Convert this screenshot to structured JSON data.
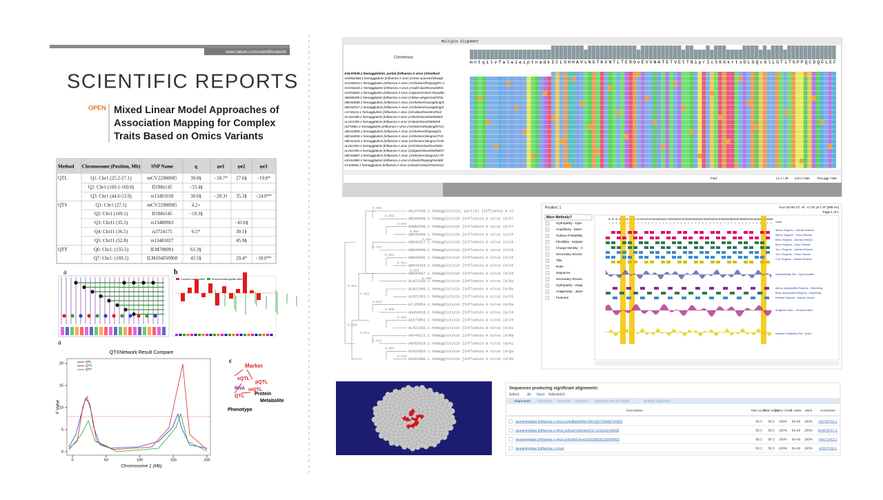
{
  "article": {
    "url": "www.nature.com/scientificreports",
    "journal": "SCIENTIFIC REPORTS",
    "open": "OPEN",
    "title_lines": [
      "Mixed Linear Model Approaches of",
      "Association Mapping for Complex",
      "Traits Based on Omics Variants"
    ]
  },
  "table": {
    "header": [
      "Method",
      "Chromosome (Position, Mb)",
      "SNP Name",
      "q",
      "φe1",
      "φe2",
      "φe3"
    ],
    "rows": [
      {
        "method": "QTL",
        "locus": "Q1: Chr1 (25.2-27.1)",
        "snp": "mCV22980985",
        "q": "30.8§",
        "e1": "−18.7*",
        "e2": "27.6§",
        "e3": "−19.8*"
      },
      {
        "locus": "Q2: Chr1 (169.1-169.8)",
        "snp": "D1Mit145",
        "q": "−33.4§"
      },
      {
        "locus": "Q3: Chr1 (44.6-53.9)",
        "snp": "rs13481018",
        "q": "30.6§",
        "e1": "−28.3†",
        "e2": "35.3§",
        "e3": "−24.0**"
      },
      {
        "method": "QTS",
        "locus": "Q1: Chr1 (27.1)",
        "snp": "mCV22980985",
        "q": "4.2+"
      },
      {
        "locus": "Q2: Chr1 (169.1)",
        "snp": "D1Mit145",
        "q": "−19.3§"
      },
      {
        "locus": "Q3: Chr11 (35.3)",
        "snp": "rs13480963",
        "e2": "−41.6§"
      },
      {
        "locus": "Q4: Chr11 (36.5)",
        "snp": "rs3724175",
        "q": "6.5*",
        "e2": "30.1§"
      },
      {
        "locus": "Q5: Chr11 (52.8)",
        "snp": "rs13481027",
        "e2": "45.9§"
      },
      {
        "method": "QTT",
        "locus": "Q6: Chr1: (155.5)",
        "snp": "ILM780091",
        "q": "61.3§"
      },
      {
        "locus": "Q7: Chr1: (169.1)",
        "snp": "ILM104050068",
        "q": "45.5§",
        "e2": "29.4*",
        "e3": "−18.0**"
      }
    ]
  },
  "figure_labels": [
    "a",
    "b",
    "a",
    "c"
  ],
  "fig_b_legend": [
    "Common loaded effect",
    "Environmental specific effect"
  ],
  "network_chart": {
    "title": "QTXNetwork Result Compare",
    "legend": [
      "QTL",
      "QTS",
      "QTT"
    ],
    "y_label": "F Value",
    "x_label": "Chromosome  1 (Mb)",
    "xticks": [
      0,
      50,
      100,
      150,
      200
    ],
    "yticks": [
      0,
      5,
      10,
      15,
      20
    ]
  },
  "omics": {
    "labels": [
      "Marker",
      "eQTL",
      "pQTL",
      "mQTL",
      "RNA",
      "Protein",
      "Metabolite",
      "QTL",
      "Phenotype"
    ]
  },
  "alignment": {
    "title": "Multiple alignment",
    "consensus_label": "Consensus",
    "consensus": "mntqilvfalaiaiptnadkICLGHHAVsNGTKVNTLTERGvEVVNATETVEtTNiprIcSKGkrtvDLGQcGlLGTiTGPPQCDQFLEF",
    "rows": [
      "AGL97639.1 hemagglutinin, partial [Influenza A virus (A/mallard",
      "AGW82588.1 hemagglutinin [Influenza A virus (A/tree sparrow/Shangh",
      "AHA56910.1 hemagglutinin [Influenza A virus (A/chicken/Zhejiang/PA-C",
      "AGO53410.1 hemagglutinin [Influenza A virus (A/wild duck/Korea/MHC",
      "ACK53683.1 hemagglutinin [Influenza A virus (A/goose/Czech Republic",
      "ABS89409.1 hemagglutinin [Influenza A virus (A/blue-winged teal/Ohio,",
      "ABO44098.1 hemagglutinin [Influenza A virus (A/chicken/Guangdong/G",
      "ABO42917.1 hemagglutinin [Influenza A virus (A/chicken/Guangdong/Z",
      "AAY46211.1 hemagglutinin [Influenza A virus (A/mallard/Sweden/91/2",
      "ALH21359.1 hemagglutinin [Influenza A virus (A/duck/Wuxi/0405006/2",
      "ALH21356.1 hemagglutinin [Influenza A virus (A/duck/Wuxi/0405005",
      "AIZ72861.1 hemagglutinin [Influenza A virus (A/chicken/Zhejiang/DT1C",
      "ABO44099.1 hemagglutinin [Influenza A virus (A/chicken/Zhejiang/Z1",
      "ABO44092.1 hemagglutinin [Influenza A virus (A/chicken/Jiangsu/JT15",
      "ABO44104.1 hemagglutinin [Influenza A virus (A/chicken/Jiangsu/TZ45",
      "ALH21353.1 hemagglutinin [Influenza A virus (A/chicken/Suzhou/0402",
      "ALH21355.1 hemagglutinin [Influenza A virus (A/pigeon/Wuxi/0405007/",
      "ABO44087.1 hemagglutinin [Influenza A virus (A/chicken/Jiangsu/LY79",
      "ASV61988.1 hemagglutinin [Influenza A virus (A/duck/Zhejiang/S4489/",
      "ATJ25954.1 hemagglutinin [Influenza A virus (A/duck/Anhui/S702/2013"
    ],
    "status": [
      "Find:",
      "Ln 1 / 20",
      "Col 1 / 564",
      "Pos pgp / 530"
    ]
  },
  "tree": {
    "leaves": [
      "AGL97639.1 hemagglutinin, partial [Influenza A vi",
      "ABS89409.1 hemagglutinin [Influenza A virus (A/bl",
      "AGW82588.1 hemagglutinin [Influenza A virus (A/tr",
      "ABO44098.1 hemagglutinin [Influenza A virus (A/ch",
      "ABO42917.1 hemagglutinin [Influenza A virus (A/ch",
      "ABO44099.1 hemagglutinin [Influenza A virus (A/ch",
      "ABO44092.1 hemagglutinin [Influenza A virus (A/ch",
      "ABO44104.1 hemagglutinin [Influenza A virus (A/ch",
      "ABO44087.1 hemagglutinin [Influenza A virus (A/ch",
      "ALH21359.1 hemagglutinin [Influenza A virus (A/du",
      "ALH21356.1 hemagglutinin [Influenza A virus (A/du",
      "ALH21353.1 hemagglutinin [Influenza A virus (A/ch",
      "ATJ25954.1 hemagglutinin [Influenza A virus (A/du",
      "AHA56910.1 hemagglutinin [Influenza A virus (A/ch",
      "AIZ72861.1 hemagglutinin [Influenza A virus (A/ch",
      "ALH21355.1 hemagglutinin [Influenza A virus (A/pi",
      "AAY46211.1 hemagglutinin [Influenza A virus (A/ma",
      "AGO53410.1 hemagglutinin [Influenza A virus (A/wi",
      "ACK53683.1 hemagglutinin [Influenza A virus (A/go",
      "ASV61988.1 hemagglutinin [Influenza A virus (A/du"
    ],
    "branch_values": [
      "0.004",
      "0.003",
      "0.004",
      "0.002",
      "0.004",
      "0.001",
      "0.003",
      "0.011",
      "0.005",
      "0.003",
      "0.001",
      "0.002",
      "0.013",
      "0.006",
      "0.004",
      "0.008",
      "0.013",
      "0.014",
      "0.003",
      "0.016"
    ]
  },
  "protein": {
    "position": "Position: 1",
    "stats": "m.w. 51761.27, ch. +1.79, pI 7.37 [465 AA]",
    "page": "Page 1 of 1",
    "dropdown": "More Methods?",
    "methods": [
      "Hydropathy - Kyte-",
      "Amphilicity - Eisen",
      "Surface Probability",
      "Flexibility - Karplus",
      "Charge Density - C",
      "Secondary Structu",
      "Title",
      "Ruler",
      "Sequence",
      "Secondary Structu",
      "Hydropathy - Hopp",
      "Antigenicity - Jame",
      "Features"
    ],
    "scale": [
      10,
      20,
      30,
      40,
      50,
      60,
      70,
      80,
      90,
      100,
      110,
      120,
      130,
      140,
      150,
      160,
      170,
      180,
      190,
      200,
      210,
      220,
      230,
      240,
      250,
      260,
      270,
      280,
      290,
      300,
      310,
      320,
      330,
      340,
      350,
      360,
      370,
      380,
      390,
      400,
      410,
      420,
      430,
      440,
      450,
      460
    ],
    "legend": [
      "Scale",
      "Alpha, Regions - Garnier-Robson",
      "Alpha, Regions - Chou-Fasman",
      "Beta, Regions - Garnier-Robson",
      "Beta, Regions - Chou-Fasman",
      "Turn, Regions - Garnier-Robson",
      "Turn, Regions - Chou-Fasman",
      "Coil, Regions - Garnier-Robson",
      "Hydrophilicity Plot - Kyte-Doolittle",
      "Alpha, Amphipathic Regions - Eisenberg",
      "Beta, Amphipathic Regions - Eisenberg",
      "Flexible Regions - Karplus-Schulz",
      "Antigenic Index - Jameson-Wolf",
      "Surface Probability Plot - Emini"
    ]
  },
  "blast": {
    "heading": "Sequences producing significant alignments:",
    "select": [
      "Select:",
      "All",
      "None",
      "Selected:0"
    ],
    "tabs": [
      "Alignments",
      "Download",
      "GenPept",
      "Graphics",
      "Distance tree of results",
      "Multiple alignment"
    ],
    "columns": [
      "Description",
      "Max score",
      "Total score",
      "Query cover",
      "E value",
      "Ident",
      "Accession"
    ],
    "rows": [
      [
        "neuraminidase [Influenza A virus (A/mallard/MN/AI08-3267/2008(H1N9))]",
        "58.3",
        "58.3",
        "100%",
        "6e-09",
        "100%",
        "AGT18710.1"
      ],
      [
        "neuraminidase [Influenza A virus (A/duck/Vietnam/G17-1/2011(H1N9))]",
        "58.3",
        "58.3",
        "100%",
        "6e-09",
        "100%",
        "BAM78717.1"
      ],
      [
        "neuraminidase [Influenza A virus (A/duck/France/150289/2015(H5N9))]",
        "58.3",
        "58.3",
        "100%",
        "6e-09",
        "100%",
        "ANA71413.1"
      ],
      [
        "neuraminidase [Influenza A virus]",
        "58.3",
        "58.3",
        "100%",
        "6e-09",
        "100%",
        "AVZ47130.1"
      ]
    ]
  }
}
